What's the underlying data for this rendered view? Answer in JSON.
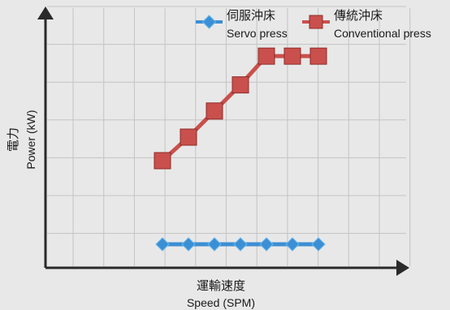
{
  "chart_data": {
    "type": "line",
    "x": [
      1,
      2,
      3,
      4,
      5,
      6,
      7
    ],
    "xlim": [
      -3.5,
      10.5
    ],
    "ylim": [
      0,
      100
    ],
    "grid": true,
    "xlabel_zh": "運輸速度",
    "xlabel_en": "Speed (SPM)",
    "ylabel_zh": "電力",
    "ylabel_en": "Power (kW)",
    "legend_position": "top",
    "series": [
      {
        "name_zh": "伺服沖床",
        "name_en": "Servo press",
        "color": "#3b8fd4",
        "marker": "diamond",
        "values": [
          9,
          9,
          9,
          9,
          9,
          9,
          9
        ]
      },
      {
        "name_zh": "傳統沖床",
        "name_en": "Conventional press",
        "color": "#c9504c",
        "marker": "square",
        "values": [
          41,
          50,
          60,
          70,
          81,
          81,
          81
        ]
      }
    ]
  }
}
